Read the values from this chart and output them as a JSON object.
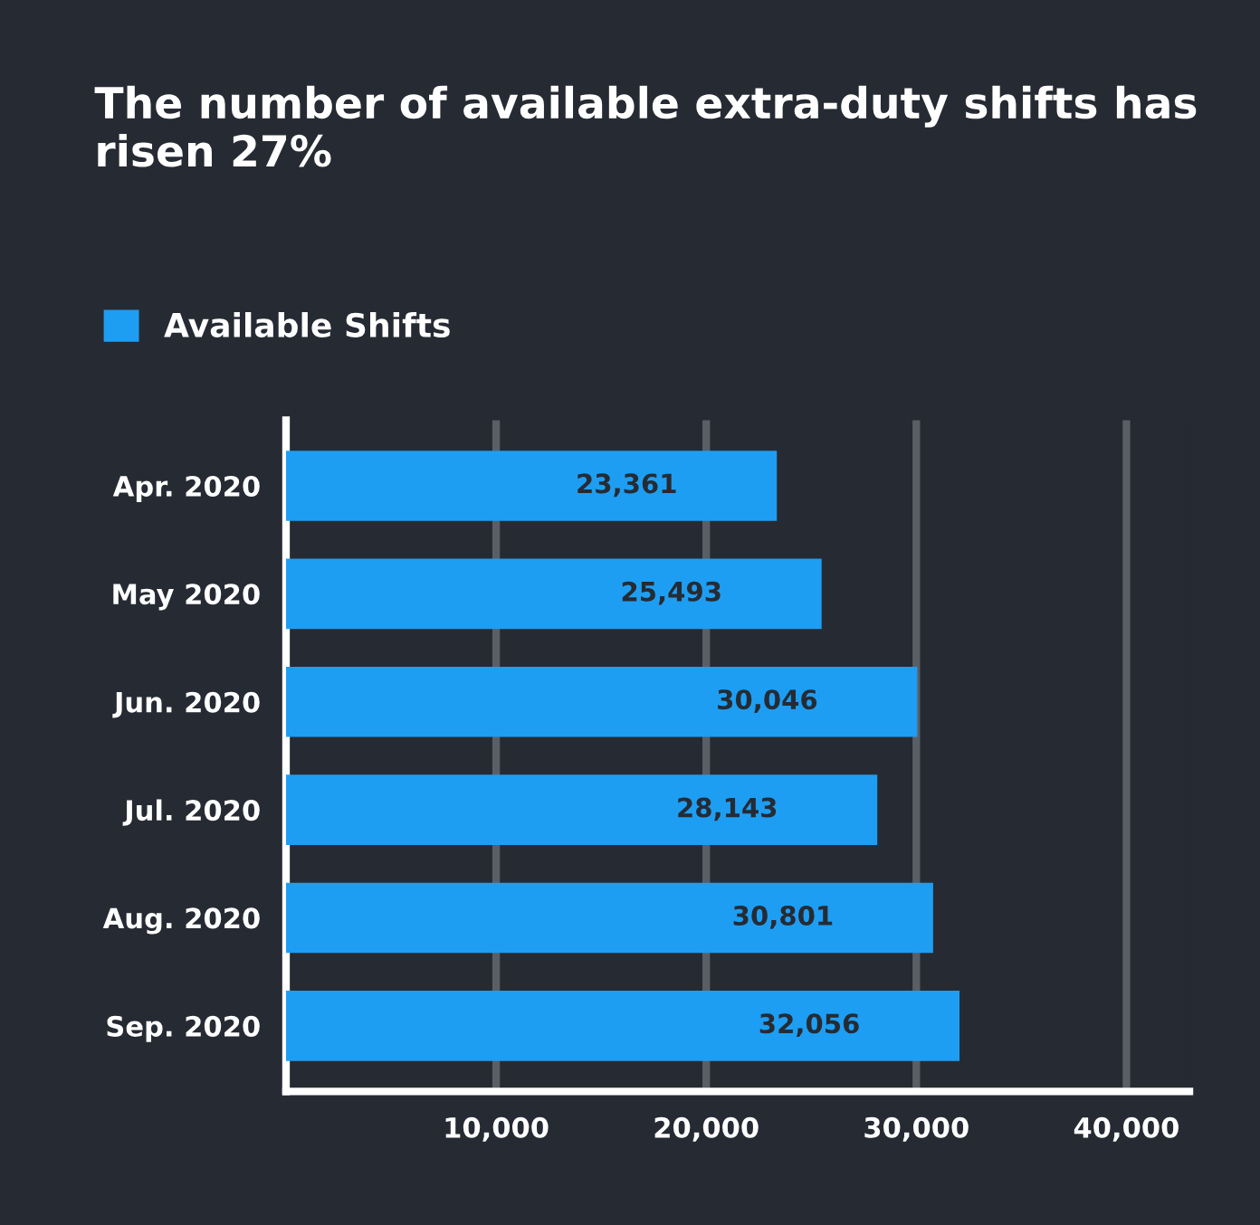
{
  "chart_data": {
    "type": "bar",
    "orientation": "horizontal",
    "title": "The number of available extra-duty shifts has risen 27%",
    "categories": [
      "Apr. 2020",
      "May 2020",
      "Jun. 2020",
      "Jul. 2020",
      "Aug. 2020",
      "Sep. 2020"
    ],
    "series": [
      {
        "name": "Available Shifts",
        "color": "#1e9ef2",
        "values": [
          23361,
          25493,
          30046,
          28143,
          30801,
          32056
        ],
        "value_labels": [
          "23,361",
          "25,493",
          "30,046",
          "28,143",
          "30,801",
          "32,056"
        ]
      }
    ],
    "xlim": [
      0,
      43000
    ],
    "xticks": [
      {
        "value": 10000,
        "label": "10,000"
      },
      {
        "value": 20000,
        "label": "20,000"
      },
      {
        "value": 30000,
        "label": "30,000"
      },
      {
        "value": 40000,
        "label": "40,000"
      }
    ],
    "grid": "x",
    "legend": "top left"
  }
}
